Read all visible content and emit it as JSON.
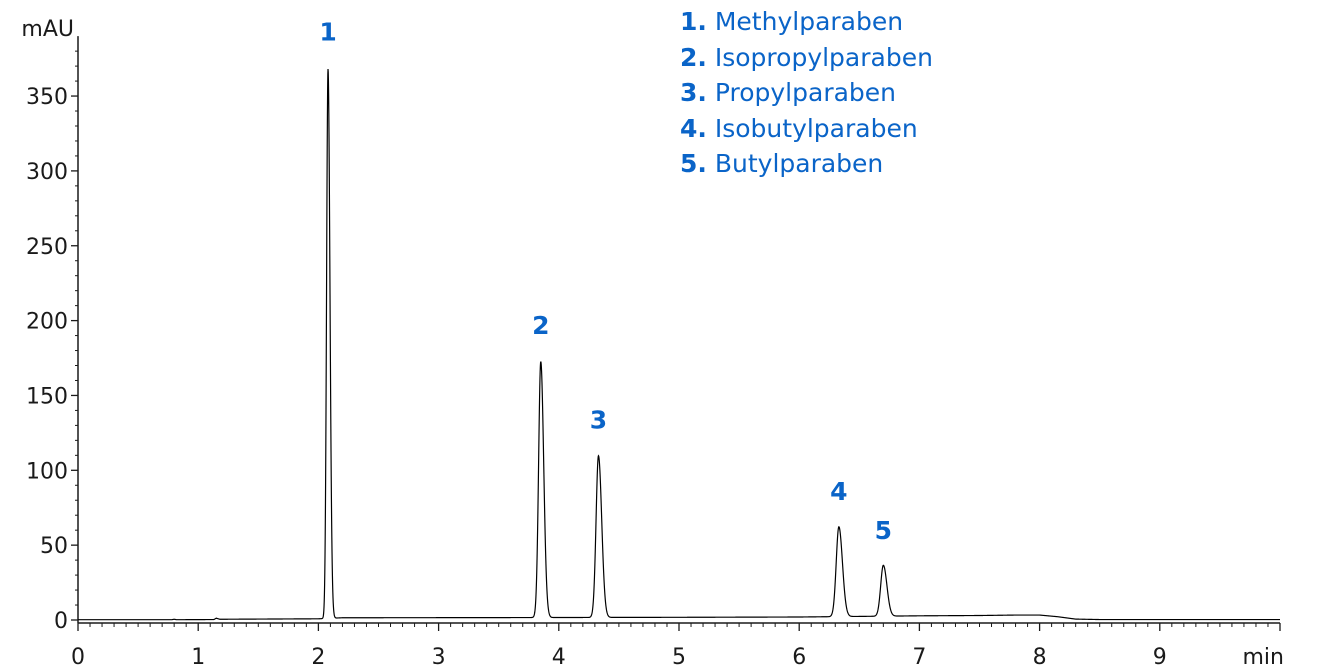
{
  "chart_data": {
    "type": "line",
    "title": "",
    "xlabel": "min",
    "ylabel": "mAU",
    "xlim": [
      0,
      10
    ],
    "ylim": [
      -2,
      390
    ],
    "x_ticks": [
      0,
      1,
      2,
      3,
      4,
      5,
      6,
      7,
      8,
      9
    ],
    "y_ticks": [
      0,
      50,
      100,
      150,
      200,
      250,
      300,
      350
    ],
    "grid": false,
    "legend_position": "top-center",
    "accent_color": "#0a64c8",
    "trace_color": "#000000",
    "peaks": [
      {
        "label": "1",
        "name": "Methylparaben",
        "rt": 2.08,
        "height": 367,
        "width": 0.012
      },
      {
        "label": "2",
        "name": "Isopropylparaben",
        "rt": 3.85,
        "height": 171,
        "width": 0.018
      },
      {
        "label": "3",
        "name": "Propylparaben",
        "rt": 4.33,
        "height": 108,
        "width": 0.02
      },
      {
        "label": "4",
        "name": "Isobutylparaben",
        "rt": 6.33,
        "height": 60,
        "width": 0.022
      },
      {
        "label": "5",
        "name": "Butylparaben",
        "rt": 6.7,
        "height": 34,
        "width": 0.022
      }
    ],
    "baseline": [
      [
        0,
        0.2
      ],
      [
        0.78,
        0.2
      ],
      [
        0.8,
        0.5
      ],
      [
        0.82,
        0.2
      ],
      [
        1.13,
        0.3
      ],
      [
        1.15,
        1.2
      ],
      [
        1.18,
        0.5
      ],
      [
        2.0,
        0.8
      ],
      [
        2.2,
        1.5
      ],
      [
        3.5,
        1.6
      ],
      [
        5.0,
        1.8
      ],
      [
        6.0,
        2.0
      ],
      [
        7.0,
        2.8
      ],
      [
        7.5,
        3.0
      ],
      [
        7.8,
        3.3
      ],
      [
        8.0,
        3.3
      ],
      [
        8.15,
        2.2
      ],
      [
        8.3,
        0.6
      ],
      [
        8.5,
        0.3
      ],
      [
        10.0,
        0.3
      ]
    ]
  }
}
